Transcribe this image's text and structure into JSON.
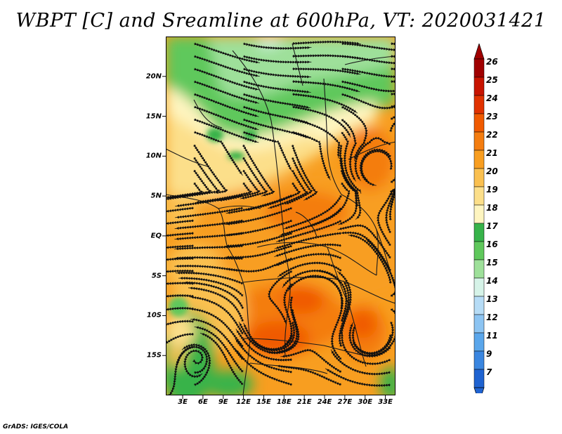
{
  "title": "WBPT [C] and Sreamline at 600hPa, VT: 2020031421",
  "footer": "GrADS: IGES/COLA",
  "latitude_labels": [
    {
      "text": "20N",
      "lat": 20
    },
    {
      "text": "15N",
      "lat": 15
    },
    {
      "text": "10N",
      "lat": 10
    },
    {
      "text": "5N",
      "lat": 5
    },
    {
      "text": "EQ",
      "lat": 0
    },
    {
      "text": "5S",
      "lat": -5
    },
    {
      "text": "10S",
      "lat": -10
    },
    {
      "text": "15S",
      "lat": -15
    }
  ],
  "longitude_labels": [
    {
      "text": "3E",
      "lon": 3
    },
    {
      "text": "6E",
      "lon": 6
    },
    {
      "text": "9E",
      "lon": 9
    },
    {
      "text": "12E",
      "lon": 12
    },
    {
      "text": "15E",
      "lon": 15
    },
    {
      "text": "18E",
      "lon": 18
    },
    {
      "text": "21E",
      "lon": 21
    },
    {
      "text": "24E",
      "lon": 24
    },
    {
      "text": "27E",
      "lon": 27
    },
    {
      "text": "30E",
      "lon": 30
    },
    {
      "text": "33E",
      "lon": 33
    }
  ],
  "map_extent": {
    "lon_min": 0.5,
    "lon_max": 34.5,
    "lat_min": -20,
    "lat_max": 25
  },
  "colorbar": {
    "labels": [
      "26",
      "25",
      "24",
      "23",
      "22",
      "21",
      "20",
      "19",
      "18",
      "17",
      "16",
      "15",
      "14",
      "13",
      "12",
      "11",
      "9",
      "7"
    ],
    "colors": [
      "#a00000",
      "#c81400",
      "#e13200",
      "#f05a00",
      "#f47d10",
      "#f89e20",
      "#fac050",
      "#fcdf8a",
      "#fef5c0",
      "#37b34a",
      "#5fc85c",
      "#9ee09a",
      "#d6f3e8",
      "#b6dcf6",
      "#8cc4f2",
      "#5aa6eb",
      "#3a86e0",
      "#1f63d1"
    ],
    "top_arrow_color": "#a00000",
    "bottom_arrow_color": "#1f63d1"
  }
}
